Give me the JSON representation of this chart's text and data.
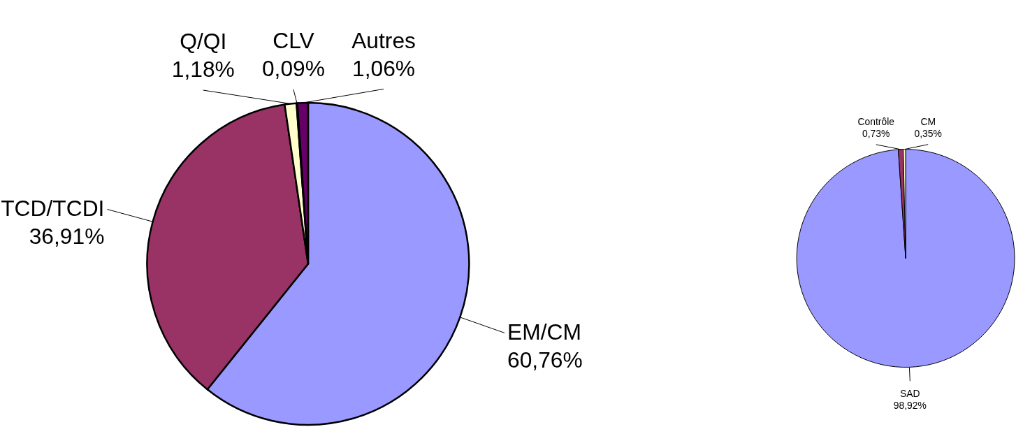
{
  "chart_data": [
    {
      "type": "pie",
      "categories": [
        "EM/CM",
        "TCD/TCDI",
        "Q/QI",
        "CLV",
        "Autres"
      ],
      "values": [
        60.76,
        36.91,
        1.18,
        0.09,
        1.06
      ],
      "colors": [
        "#9999ff",
        "#993366",
        "#ffffcc",
        "#ccffff",
        "#660066"
      ],
      "value_labels": [
        "60,76%",
        "36,91%",
        "1,18%",
        "0,09%",
        "1,06%"
      ]
    },
    {
      "type": "pie",
      "categories": [
        "SAD",
        "Contrôle",
        "CM"
      ],
      "values": [
        98.92,
        0.73,
        0.35
      ],
      "colors": [
        "#9999ff",
        "#993366",
        "#ffffcc"
      ],
      "value_labels": [
        "98,92%",
        "0,73%",
        "0,35%"
      ]
    }
  ]
}
